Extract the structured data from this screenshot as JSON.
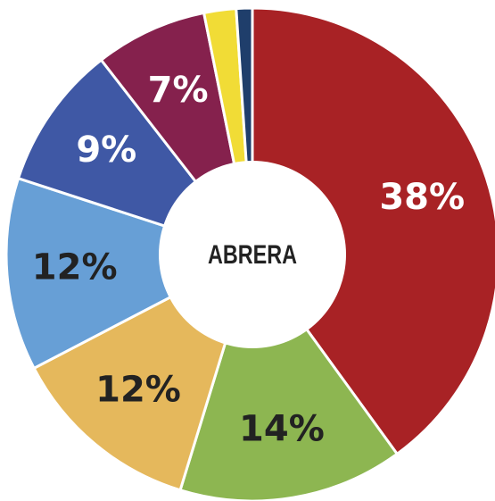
{
  "chart_data": {
    "type": "donut",
    "center_label": "ABRERA",
    "values": [
      38,
      14,
      12,
      12,
      9,
      7,
      2,
      1
    ],
    "value_labels": [
      "38%",
      "14%",
      "12%",
      "12%",
      "9%",
      "7%",
      null,
      null
    ],
    "colors": [
      "#a82225",
      "#8db651",
      "#e5b85c",
      "#679fd6",
      "#3f58a5",
      "#85214d",
      "#f1dc36",
      "#1f3e6b"
    ],
    "label_colors": [
      "#ffffff",
      "#222222",
      "#222222",
      "#222222",
      "#ffffff",
      "#ffffff",
      null,
      null
    ]
  }
}
